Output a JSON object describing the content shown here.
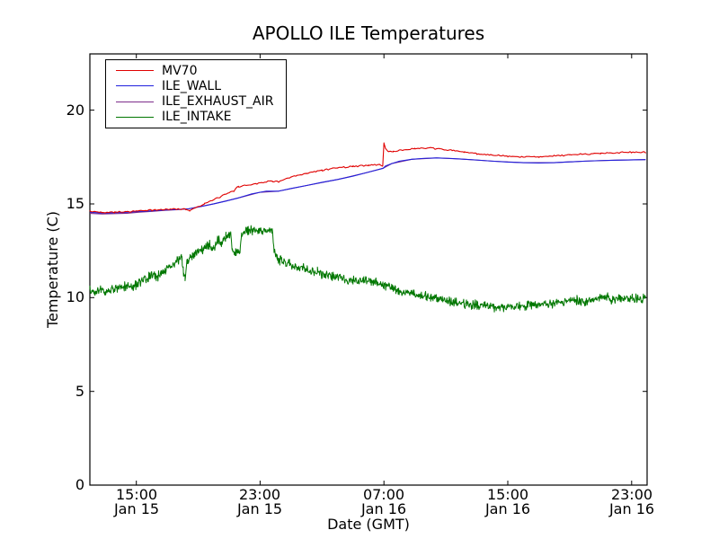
{
  "figure": {
    "title": "APOLLO ILE Temperatures",
    "background_color": "#ffffff",
    "frame_color": "#000000"
  },
  "chart_data": {
    "type": "line",
    "title": "APOLLO ILE Temperatures",
    "xlabel": "Date (GMT)",
    "ylabel": "Temperature (C)",
    "ylim": [
      0,
      23
    ],
    "yticks": [
      0,
      5,
      10,
      15,
      20
    ],
    "grid": false,
    "legend_position": "upper-left",
    "x_unit": "hours since Jan 15 12:00 GMT",
    "xlim_hours": [
      0,
      36
    ],
    "xticks": [
      {
        "hour": 3,
        "time": "15:00",
        "date": "Jan 15"
      },
      {
        "hour": 11,
        "time": "23:00",
        "date": "Jan 15"
      },
      {
        "hour": 19,
        "time": "07:00",
        "date": "Jan 16"
      },
      {
        "hour": 27,
        "time": "15:00",
        "date": "Jan 16"
      },
      {
        "hour": 35,
        "time": "23:00",
        "date": "Jan 16"
      }
    ],
    "series": [
      {
        "name": "MV70",
        "color": "#e00000",
        "width": 1.1,
        "noise": 0.05,
        "step": 0.1,
        "points": [
          [
            0,
            14.6
          ],
          [
            0.8,
            14.55
          ],
          [
            1.6,
            14.57
          ],
          [
            2.4,
            14.58
          ],
          [
            3.2,
            14.63
          ],
          [
            4.0,
            14.66
          ],
          [
            4.8,
            14.7
          ],
          [
            5.5,
            14.73
          ],
          [
            6.2,
            14.72
          ],
          [
            6.45,
            14.63
          ],
          [
            6.8,
            14.8
          ],
          [
            7.4,
            15.0
          ],
          [
            8.0,
            15.22
          ],
          [
            8.7,
            15.48
          ],
          [
            9.3,
            15.7
          ],
          [
            9.6,
            15.93
          ],
          [
            10.2,
            16.0
          ],
          [
            11.0,
            16.13
          ],
          [
            11.8,
            16.22
          ],
          [
            12.2,
            16.18
          ],
          [
            13.0,
            16.42
          ],
          [
            14.0,
            16.62
          ],
          [
            15.0,
            16.8
          ],
          [
            16.0,
            16.93
          ],
          [
            17.0,
            17.0
          ],
          [
            18.0,
            17.06
          ],
          [
            18.7,
            17.1
          ],
          [
            18.92,
            17.02
          ],
          [
            19.0,
            18.25
          ],
          [
            19.1,
            17.95
          ],
          [
            19.25,
            17.8
          ],
          [
            19.6,
            17.8
          ],
          [
            20.3,
            17.88
          ],
          [
            21.0,
            17.95
          ],
          [
            21.8,
            17.97
          ],
          [
            22.6,
            17.93
          ],
          [
            23.4,
            17.85
          ],
          [
            24.2,
            17.76
          ],
          [
            25.0,
            17.68
          ],
          [
            26.0,
            17.6
          ],
          [
            27.0,
            17.53
          ],
          [
            28.0,
            17.5
          ],
          [
            29.0,
            17.52
          ],
          [
            30.0,
            17.56
          ],
          [
            31.0,
            17.61
          ],
          [
            32.0,
            17.66
          ],
          [
            33.0,
            17.7
          ],
          [
            34.0,
            17.73
          ],
          [
            35.0,
            17.75
          ],
          [
            35.9,
            17.76
          ]
        ]
      },
      {
        "name": "ILE_WALL",
        "color": "#2020dd",
        "width": 1.1,
        "noise": 0,
        "step": 0,
        "points": [
          [
            0,
            14.55
          ],
          [
            0.8,
            14.51
          ],
          [
            1.6,
            14.53
          ],
          [
            2.4,
            14.55
          ],
          [
            3.2,
            14.6
          ],
          [
            4.0,
            14.63
          ],
          [
            4.8,
            14.67
          ],
          [
            5.6,
            14.7
          ],
          [
            6.4,
            14.74
          ],
          [
            7.2,
            14.86
          ],
          [
            8.0,
            15.0
          ],
          [
            8.8,
            15.15
          ],
          [
            9.6,
            15.32
          ],
          [
            10.4,
            15.52
          ],
          [
            11.0,
            15.62
          ],
          [
            11.4,
            15.68
          ],
          [
            12.2,
            15.68
          ],
          [
            13.0,
            15.82
          ],
          [
            14.0,
            15.98
          ],
          [
            15.0,
            16.15
          ],
          [
            16.0,
            16.3
          ],
          [
            17.0,
            16.48
          ],
          [
            17.8,
            16.65
          ],
          [
            18.5,
            16.8
          ],
          [
            18.95,
            16.9
          ],
          [
            19.1,
            17.02
          ],
          [
            19.5,
            17.15
          ],
          [
            20.0,
            17.28
          ],
          [
            20.8,
            17.38
          ],
          [
            21.6,
            17.43
          ],
          [
            22.4,
            17.45
          ],
          [
            23.2,
            17.43
          ],
          [
            24.0,
            17.39
          ],
          [
            25.0,
            17.34
          ],
          [
            26.0,
            17.28
          ],
          [
            27.0,
            17.23
          ],
          [
            28.0,
            17.2
          ],
          [
            29.0,
            17.18
          ],
          [
            30.0,
            17.2
          ],
          [
            31.0,
            17.24
          ],
          [
            32.0,
            17.28
          ],
          [
            33.0,
            17.31
          ],
          [
            34.0,
            17.33
          ],
          [
            35.9,
            17.36
          ]
        ]
      },
      {
        "name": "ILE_EXHAUST_AIR",
        "color": "#7d2d8b",
        "width": 1.1,
        "noise": 0,
        "step": 0,
        "points": [
          [
            0,
            14.49
          ],
          [
            0.8,
            14.46
          ],
          [
            1.6,
            14.48
          ],
          [
            2.4,
            14.5
          ],
          [
            3.2,
            14.56
          ],
          [
            4.0,
            14.6
          ],
          [
            4.8,
            14.65
          ],
          [
            5.6,
            14.69
          ],
          [
            6.4,
            14.74
          ],
          [
            8.0,
            15.0
          ],
          [
            9.6,
            15.32
          ],
          [
            11.0,
            15.62
          ],
          [
            12.2,
            15.68
          ],
          [
            14.0,
            15.98
          ],
          [
            16.0,
            16.3
          ],
          [
            17.8,
            16.65
          ],
          [
            18.95,
            16.9
          ],
          [
            19.5,
            17.15
          ],
          [
            20.8,
            17.38
          ],
          [
            22.4,
            17.45
          ],
          [
            24.0,
            17.39
          ],
          [
            26.0,
            17.28
          ],
          [
            28.0,
            17.2
          ],
          [
            30.0,
            17.2
          ],
          [
            32.0,
            17.28
          ],
          [
            34.0,
            17.33
          ],
          [
            35.9,
            17.36
          ]
        ]
      },
      {
        "name": "ILE_INTAKE",
        "color": "#007700",
        "width": 1.0,
        "noise": 0.3,
        "step": 0.03,
        "points": [
          [
            0,
            10.35
          ],
          [
            0.4,
            10.28
          ],
          [
            0.8,
            10.42
          ],
          [
            1.2,
            10.3
          ],
          [
            1.6,
            10.5
          ],
          [
            2.0,
            10.48
          ],
          [
            2.4,
            10.62
          ],
          [
            2.8,
            10.58
          ],
          [
            3.2,
            10.8
          ],
          [
            3.6,
            10.95
          ],
          [
            4.0,
            11.2
          ],
          [
            4.4,
            11.15
          ],
          [
            4.8,
            11.45
          ],
          [
            5.2,
            11.7
          ],
          [
            5.6,
            11.9
          ],
          [
            5.95,
            12.15
          ],
          [
            6.05,
            11.25
          ],
          [
            6.15,
            11.05
          ],
          [
            6.3,
            12.05
          ],
          [
            6.6,
            12.25
          ],
          [
            7.0,
            12.45
          ],
          [
            7.4,
            12.6
          ],
          [
            7.7,
            12.8
          ],
          [
            8.0,
            12.6
          ],
          [
            8.3,
            13.1
          ],
          [
            8.5,
            12.9
          ],
          [
            8.8,
            13.3
          ],
          [
            9.1,
            13.4
          ],
          [
            9.2,
            12.5
          ],
          [
            9.45,
            12.35
          ],
          [
            9.7,
            12.4
          ],
          [
            9.8,
            13.45
          ],
          [
            10.1,
            13.6
          ],
          [
            10.5,
            13.55
          ],
          [
            10.9,
            13.65
          ],
          [
            11.3,
            13.5
          ],
          [
            11.6,
            13.62
          ],
          [
            11.78,
            13.55
          ],
          [
            11.9,
            12.55
          ],
          [
            12.1,
            12.1
          ],
          [
            12.4,
            11.95
          ],
          [
            12.9,
            11.8
          ],
          [
            13.4,
            11.65
          ],
          [
            14.0,
            11.5
          ],
          [
            14.7,
            11.35
          ],
          [
            15.4,
            11.18
          ],
          [
            16.2,
            11.05
          ],
          [
            17.0,
            10.92
          ],
          [
            17.7,
            10.88
          ],
          [
            18.3,
            10.82
          ],
          [
            19.0,
            10.7
          ],
          [
            19.6,
            10.48
          ],
          [
            20.2,
            10.32
          ],
          [
            21.0,
            10.18
          ],
          [
            22.0,
            10.02
          ],
          [
            23.0,
            9.85
          ],
          [
            24.0,
            9.7
          ],
          [
            25.0,
            9.6
          ],
          [
            26.0,
            9.52
          ],
          [
            27.0,
            9.47
          ],
          [
            28.0,
            9.55
          ],
          [
            29.0,
            9.62
          ],
          [
            30.0,
            9.68
          ],
          [
            30.8,
            9.85
          ],
          [
            31.4,
            9.88
          ],
          [
            32.0,
            9.72
          ],
          [
            32.7,
            9.95
          ],
          [
            33.3,
            10.1
          ],
          [
            33.7,
            9.82
          ],
          [
            34.2,
            10.0
          ],
          [
            34.8,
            9.92
          ],
          [
            35.9,
            9.95
          ]
        ]
      }
    ]
  }
}
